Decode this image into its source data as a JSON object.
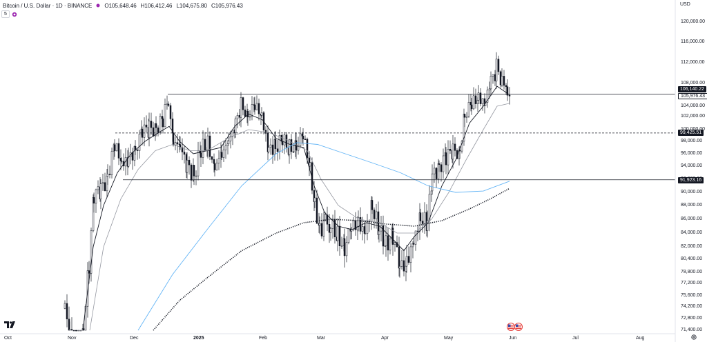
{
  "header": {
    "symbol_title": "Bitcoin / U.S. Dollar · 1D · BINANCE",
    "open": "O105,648.46",
    "high": "H106,412.46",
    "low": "L104,675.80",
    "close": "C105,976.43",
    "interval_badge": "5",
    "currency": "USD"
  },
  "price_axis": {
    "ticks": [
      "120,000.00",
      "116,000.00",
      "112,000.00",
      "108,000.00",
      "104,000.00",
      "102,000.00",
      "100,000.00",
      "98,000.00",
      "96,000.00",
      "94,000.00",
      "92,000.00",
      "90,000.00",
      "88,000.00",
      "86,000.00",
      "84,000.00",
      "82,000.00",
      "80,400.00",
      "78,800.00",
      "77,200.00",
      "75,600.00",
      "74,200.00",
      "72,800.00",
      "71,400.00"
    ]
  },
  "time_axis": {
    "ticks": [
      "Oct",
      "Nov",
      "Dec",
      "2025",
      "Feb",
      "Mar",
      "Apr",
      "May",
      "Jun",
      "Jul",
      "Aug"
    ]
  },
  "price_tags": {
    "last_price": "106,140.22",
    "close_price": "105,976.43",
    "level_upper": "99,425.51",
    "level_lower": "91,923.16"
  },
  "horizontal_levels": [
    106140.22,
    99425.51,
    91923.16
  ],
  "icons": {
    "logo": "tradingview-logo-icon",
    "events": "us-flag-events-icon",
    "settings": "settings-gear-icon"
  },
  "colors": {
    "candle": "#131722",
    "fast_ma": "#131722",
    "slow_ma": "#9598a1",
    "blue_ma": "#64b5f6",
    "long_ma_dotted": "#131722",
    "accent": "#9c27b0"
  }
}
